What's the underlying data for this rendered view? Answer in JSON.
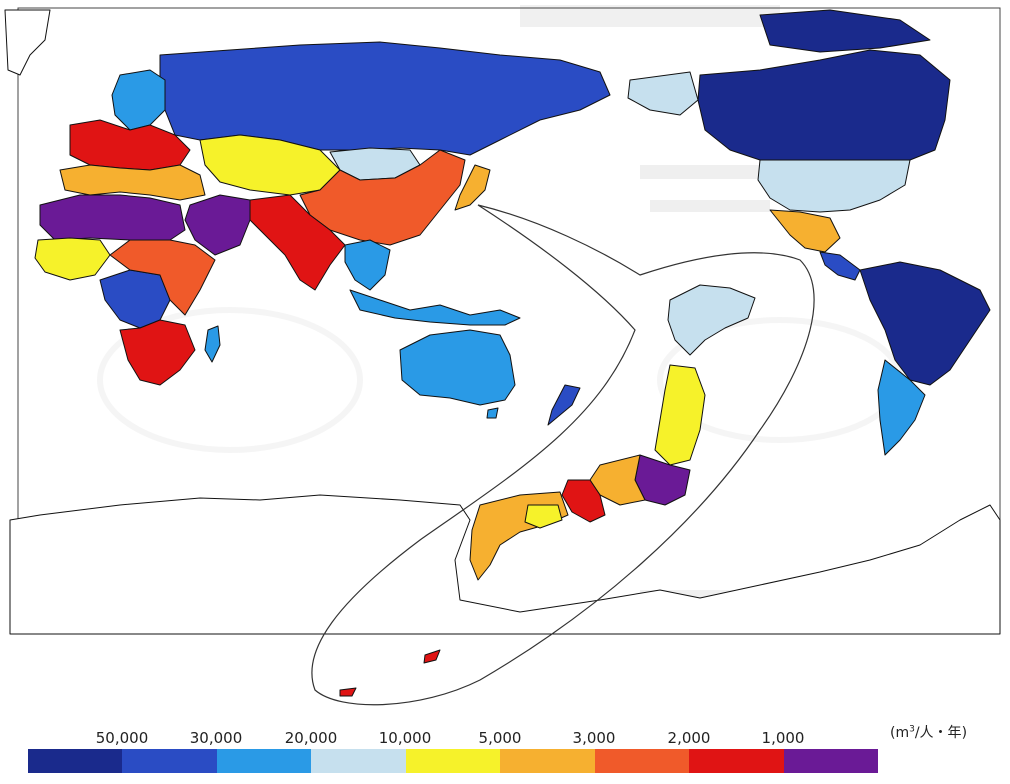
{
  "legend": {
    "unit": "m³/人・年",
    "unit_base": "m",
    "unit_exp": "3",
    "unit_rest": "/人・年",
    "ticks": [
      "50,000",
      "30,000",
      "20,000",
      "10,000",
      "5,000",
      "3,000",
      "2,000",
      "1,000"
    ],
    "colors": [
      "#1a2a8c",
      "#2a4cc4",
      "#2a9ae6",
      "#c6e0ee",
      "#f6f22a",
      "#f6b030",
      "#f05a2a",
      "#e01414",
      "#6a1a96"
    ]
  },
  "regions": [
    {
      "name": "north-america-north",
      "color": "#1a2a8c"
    },
    {
      "name": "usa",
      "color": "#c6e0ee"
    },
    {
      "name": "mexico",
      "color": "#f6b030"
    },
    {
      "name": "central-america",
      "color": "#2a4cc4"
    },
    {
      "name": "south-america-north",
      "color": "#1a2a8c"
    },
    {
      "name": "argentina",
      "color": "#2a9ae6"
    },
    {
      "name": "russia",
      "color": "#2a4cc4"
    },
    {
      "name": "europe-north",
      "color": "#2a9ae6"
    },
    {
      "name": "europe-west",
      "color": "#e01414"
    },
    {
      "name": "europe-south",
      "color": "#f6b030"
    },
    {
      "name": "north-africa",
      "color": "#6a1a96"
    },
    {
      "name": "west-africa",
      "color": "#f6f22a"
    },
    {
      "name": "central-africa",
      "color": "#2a4cc4"
    },
    {
      "name": "east-africa",
      "color": "#f05a2a"
    },
    {
      "name": "southern-africa",
      "color": "#e01414"
    },
    {
      "name": "arabia",
      "color": "#6a1a96"
    },
    {
      "name": "central-asia",
      "color": "#f6f22a"
    },
    {
      "name": "mongolia",
      "color": "#c6e0ee"
    },
    {
      "name": "china",
      "color": "#f05a2a"
    },
    {
      "name": "india",
      "color": "#e01414"
    },
    {
      "name": "southeast-asia",
      "color": "#2a9ae6"
    },
    {
      "name": "australia",
      "color": "#2a9ae6"
    },
    {
      "name": "new-zealand",
      "color": "#2a4cc4"
    },
    {
      "name": "greenland",
      "color": "#ffffff"
    },
    {
      "name": "antarctica",
      "color": "#ffffff"
    },
    {
      "name": "japan-hokkaido",
      "color": "#c6e0ee"
    },
    {
      "name": "japan-tohoku",
      "color": "#f6f22a"
    },
    {
      "name": "japan-kanto",
      "color": "#6a1a96"
    },
    {
      "name": "japan-kinki",
      "color": "#e01414"
    },
    {
      "name": "japan-west",
      "color": "#f6b030"
    }
  ]
}
